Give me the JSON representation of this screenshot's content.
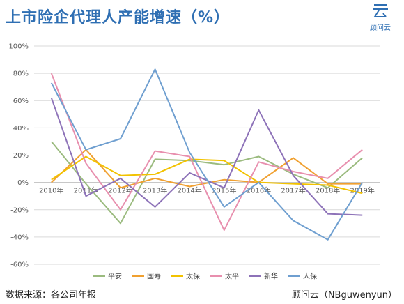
{
  "header": {
    "title": "上市险企代理人产能增速（%）",
    "logo_text": "顾问云"
  },
  "footer": {
    "source": "数据来源：各公司年报",
    "credit": "顾问云（NBguwenyun）"
  },
  "colors": {
    "title": "#2f6fb3",
    "平安": "#9bbb7f",
    "国寿": "#f0a030",
    "太保": "#f2c200",
    "太平": "#e88fae",
    "新华": "#8d72b8",
    "人保": "#6f9fd0"
  },
  "chart_data": {
    "type": "line",
    "title": "",
    "xlabel": "",
    "ylabel": "",
    "categories": [
      "2010年",
      "2011年",
      "2012年",
      "2013年",
      "2014年",
      "2015年",
      "2016年",
      "2017年",
      "2018年",
      "2019年"
    ],
    "ylim": [
      -60,
      100
    ],
    "yticks": [
      -60,
      -40,
      -20,
      0,
      20,
      40,
      60,
      80,
      100
    ],
    "ytick_labels": [
      "-60%",
      "-40%",
      "-20%",
      "0%",
      "20%",
      "40%",
      "60%",
      "80%",
      "100%"
    ],
    "grid": "horizontal",
    "legend_position": "bottom",
    "series": [
      {
        "name": "平安",
        "values": [
          30,
          -1,
          -30,
          17,
          16,
          13,
          19,
          6,
          -4,
          18
        ]
      },
      {
        "name": "国寿",
        "values": [
          0,
          24,
          -4,
          3,
          -3,
          2,
          0,
          18,
          -1,
          -1
        ]
      },
      {
        "name": "太保",
        "values": [
          2,
          19,
          5,
          6,
          17,
          16,
          0,
          -1,
          -2,
          -8
        ]
      },
      {
        "name": "太平",
        "values": [
          80,
          14,
          -20,
          23,
          19,
          -35,
          15,
          8,
          3,
          24
        ]
      },
      {
        "name": "新华",
        "values": [
          62,
          -10,
          3,
          -18,
          7,
          -4,
          53,
          5,
          -23,
          -24
        ]
      },
      {
        "name": "人保",
        "values": [
          73,
          24,
          32,
          83,
          22,
          -18,
          0,
          -28,
          -42,
          0
        ]
      }
    ]
  }
}
